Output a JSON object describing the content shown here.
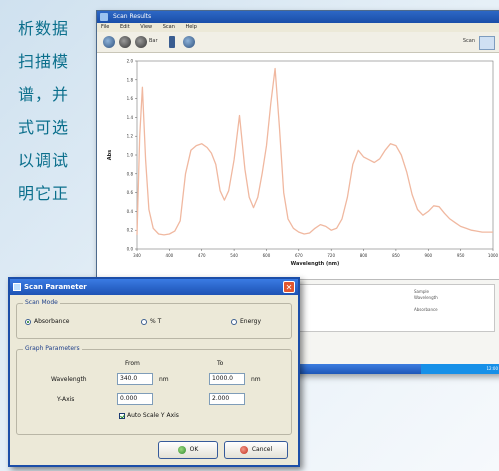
{
  "background_text": {
    "lines": [
      "析数据",
      "扫描模",
      "谱，并",
      "式可选",
      "以调试",
      "明它正"
    ]
  },
  "app": {
    "title": "Scan Results",
    "menu": [
      "File",
      "Edit",
      "View",
      "Scan",
      "Help"
    ],
    "toolbar": {
      "zoom_label": "Bar",
      "right_label": "Scan"
    },
    "info_box": {
      "lines": [
        "Sample",
        "Wavelength",
        "Absorbance"
      ]
    },
    "tray_text": "12:00"
  },
  "chart_data": {
    "type": "line",
    "xlabel": "Wavelength (nm)",
    "ylabel": "Abs",
    "xlim": [
      340,
      1000
    ],
    "ylim": [
      0.0,
      2.0
    ],
    "x_ticks": [
      "340",
      "400",
      "470",
      "540",
      "600",
      "670",
      "720",
      "800",
      "850",
      "900",
      "950",
      "1000"
    ],
    "y_ticks": [
      "0.0",
      "0.2",
      "0.4",
      "0.6",
      "0.8",
      "1.0",
      "1.2",
      "1.4",
      "1.6",
      "1.8",
      "2.0"
    ],
    "line_color": "#f0b8a0",
    "series": [
      {
        "x": [
          340,
          345,
          350,
          356,
          362,
          370,
          380,
          390,
          400,
          410,
          420,
          430,
          440,
          450,
          460,
          470,
          478,
          486,
          494,
          502,
          510,
          520,
          530,
          540,
          548,
          556,
          564,
          572,
          580,
          588,
          596,
          604,
          612,
          620,
          630,
          640,
          650,
          660,
          670,
          680,
          690,
          700,
          710,
          720,
          730,
          740,
          750,
          760,
          770,
          780,
          790,
          800,
          810,
          820,
          830,
          840,
          850,
          860,
          870,
          880,
          890,
          900,
          910,
          920,
          930,
          940,
          950,
          960,
          970,
          980,
          990,
          1000
        ],
        "y": [
          0.15,
          1.2,
          1.72,
          0.95,
          0.42,
          0.22,
          0.16,
          0.15,
          0.16,
          0.19,
          0.3,
          0.8,
          1.05,
          1.1,
          1.12,
          1.08,
          1.02,
          0.9,
          0.62,
          0.52,
          0.62,
          0.95,
          1.42,
          0.85,
          0.55,
          0.44,
          0.55,
          0.8,
          1.1,
          1.55,
          1.92,
          1.3,
          0.6,
          0.32,
          0.22,
          0.18,
          0.16,
          0.17,
          0.22,
          0.26,
          0.24,
          0.2,
          0.22,
          0.32,
          0.55,
          0.9,
          1.05,
          0.98,
          0.95,
          0.92,
          0.96,
          1.05,
          1.12,
          1.1,
          1.0,
          0.82,
          0.58,
          0.42,
          0.36,
          0.4,
          0.46,
          0.45,
          0.38,
          0.32,
          0.28,
          0.24,
          0.22,
          0.2,
          0.19,
          0.18,
          0.18,
          0.18
        ]
      }
    ]
  },
  "dialog": {
    "title": "Scan Parameter",
    "scan_mode": {
      "legend": "Scan Mode",
      "options": [
        "Absorbance",
        "% T",
        "Energy"
      ],
      "selected": "Absorbance"
    },
    "graph_params": {
      "legend": "Graph Parameters",
      "from_label": "From",
      "to_label": "To",
      "wavelength_label": "Wavelength",
      "wavelength_from": "340.0",
      "wavelength_to": "1000.0",
      "unit": "nm",
      "yaxis_label": "Y-Axis",
      "yaxis_from": "0.000",
      "yaxis_to": "2.000",
      "autoscale_label": "Auto Scale Y Axis"
    },
    "ok_label": "OK",
    "cancel_label": "Cancel"
  }
}
